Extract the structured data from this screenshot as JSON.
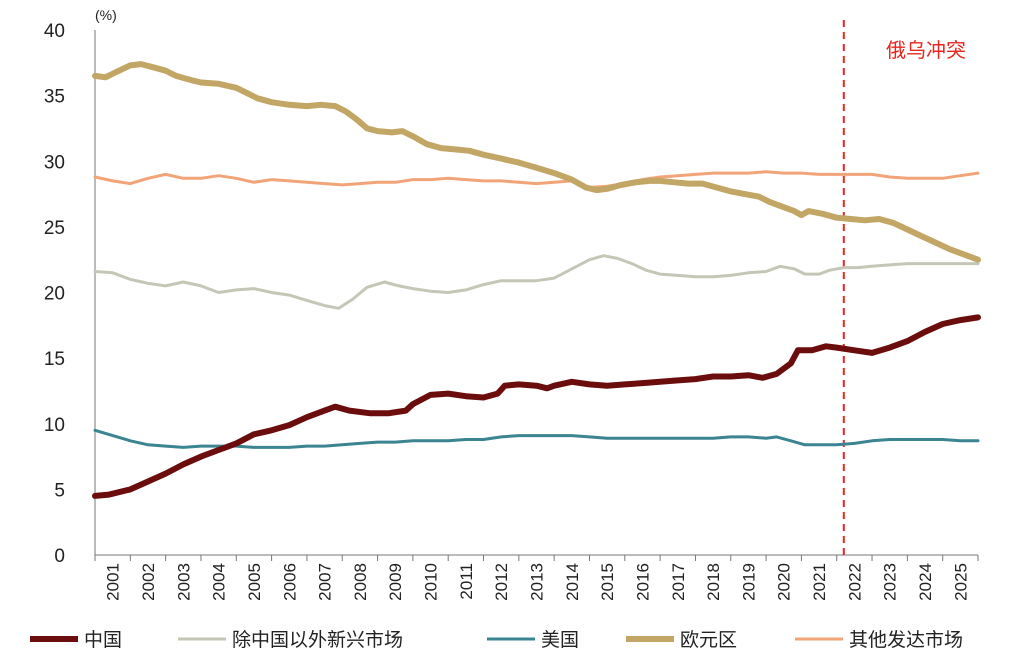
{
  "chart_data": {
    "type": "line",
    "unit_label": "(%)",
    "y_ticks": [
      "0",
      "5",
      "10",
      "15",
      "20",
      "25",
      "30",
      "35",
      "40"
    ],
    "ylim": [
      0,
      40
    ],
    "xlim": [
      2001.0,
      2026.0
    ],
    "x_ticks": [
      "2001",
      "2002",
      "2003",
      "2004",
      "2005",
      "2006",
      "2007",
      "2008",
      "2009",
      "2010",
      "2011",
      "2012",
      "2013",
      "2014",
      "2015",
      "2016",
      "2017",
      "2018",
      "2019",
      "2020",
      "2021",
      "2022",
      "2023",
      "2024",
      "2025"
    ],
    "annotation": {
      "label": "俄乌冲突",
      "x": 2022.2,
      "color": "#e8251f"
    },
    "series": [
      {
        "name": "中国",
        "color": "#6b0d0d",
        "width": 6,
        "points": [
          [
            2001.0,
            4.5
          ],
          [
            2001.4,
            4.6
          ],
          [
            2002.0,
            5.0
          ],
          [
            2002.5,
            5.6
          ],
          [
            2003.0,
            6.2
          ],
          [
            2003.5,
            6.9
          ],
          [
            2004.0,
            7.5
          ],
          [
            2004.5,
            8.0
          ],
          [
            2005.0,
            8.5
          ],
          [
            2005.5,
            9.2
          ],
          [
            2006.0,
            9.5
          ],
          [
            2006.5,
            9.9
          ],
          [
            2007.0,
            10.5
          ],
          [
            2007.5,
            11.0
          ],
          [
            2007.8,
            11.3
          ],
          [
            2008.2,
            11.0
          ],
          [
            2008.8,
            10.8
          ],
          [
            2009.3,
            10.8
          ],
          [
            2009.8,
            11.0
          ],
          [
            2010.0,
            11.5
          ],
          [
            2010.5,
            12.2
          ],
          [
            2011.0,
            12.3
          ],
          [
            2011.5,
            12.1
          ],
          [
            2012.0,
            12.0
          ],
          [
            2012.4,
            12.3
          ],
          [
            2012.6,
            12.9
          ],
          [
            2013.0,
            13.0
          ],
          [
            2013.5,
            12.9
          ],
          [
            2013.8,
            12.7
          ],
          [
            2014.0,
            12.9
          ],
          [
            2014.5,
            13.2
          ],
          [
            2015.0,
            13.0
          ],
          [
            2015.5,
            12.9
          ],
          [
            2016.0,
            13.0
          ],
          [
            2016.5,
            13.1
          ],
          [
            2017.0,
            13.2
          ],
          [
            2017.5,
            13.3
          ],
          [
            2018.0,
            13.4
          ],
          [
            2018.5,
            13.6
          ],
          [
            2019.0,
            13.6
          ],
          [
            2019.5,
            13.7
          ],
          [
            2019.9,
            13.5
          ],
          [
            2020.3,
            13.8
          ],
          [
            2020.7,
            14.6
          ],
          [
            2020.9,
            15.6
          ],
          [
            2021.3,
            15.6
          ],
          [
            2021.7,
            15.9
          ],
          [
            2022.0,
            15.8
          ],
          [
            2022.5,
            15.6
          ],
          [
            2023.0,
            15.4
          ],
          [
            2023.5,
            15.8
          ],
          [
            2024.0,
            16.3
          ],
          [
            2024.5,
            17.0
          ],
          [
            2025.0,
            17.6
          ],
          [
            2025.5,
            17.9
          ],
          [
            2026.0,
            18.1
          ]
        ]
      },
      {
        "name": "除中国以外新兴市场",
        "color": "#c5c7b6",
        "width": 3,
        "points": [
          [
            2001.0,
            21.6
          ],
          [
            2001.5,
            21.5
          ],
          [
            2002.0,
            21.0
          ],
          [
            2002.5,
            20.7
          ],
          [
            2003.0,
            20.5
          ],
          [
            2003.5,
            20.8
          ],
          [
            2004.0,
            20.5
          ],
          [
            2004.5,
            20.0
          ],
          [
            2005.0,
            20.2
          ],
          [
            2005.5,
            20.3
          ],
          [
            2006.0,
            20.0
          ],
          [
            2006.5,
            19.8
          ],
          [
            2007.0,
            19.4
          ],
          [
            2007.5,
            19.0
          ],
          [
            2007.9,
            18.8
          ],
          [
            2008.3,
            19.5
          ],
          [
            2008.7,
            20.4
          ],
          [
            2009.2,
            20.8
          ],
          [
            2009.6,
            20.5
          ],
          [
            2010.0,
            20.3
          ],
          [
            2010.5,
            20.1
          ],
          [
            2011.0,
            20.0
          ],
          [
            2011.5,
            20.2
          ],
          [
            2012.0,
            20.6
          ],
          [
            2012.5,
            20.9
          ],
          [
            2013.0,
            20.9
          ],
          [
            2013.5,
            20.9
          ],
          [
            2014.0,
            21.1
          ],
          [
            2014.5,
            21.8
          ],
          [
            2015.0,
            22.5
          ],
          [
            2015.4,
            22.8
          ],
          [
            2015.8,
            22.6
          ],
          [
            2016.2,
            22.2
          ],
          [
            2016.6,
            21.7
          ],
          [
            2017.0,
            21.4
          ],
          [
            2017.5,
            21.3
          ],
          [
            2018.0,
            21.2
          ],
          [
            2018.5,
            21.2
          ],
          [
            2019.0,
            21.3
          ],
          [
            2019.5,
            21.5
          ],
          [
            2020.0,
            21.6
          ],
          [
            2020.4,
            22.0
          ],
          [
            2020.8,
            21.8
          ],
          [
            2021.1,
            21.4
          ],
          [
            2021.5,
            21.4
          ],
          [
            2021.8,
            21.7
          ],
          [
            2022.2,
            21.9
          ],
          [
            2022.6,
            21.9
          ],
          [
            2023.0,
            22.0
          ],
          [
            2023.5,
            22.1
          ],
          [
            2024.0,
            22.2
          ],
          [
            2024.5,
            22.2
          ],
          [
            2025.0,
            22.2
          ],
          [
            2025.5,
            22.2
          ],
          [
            2026.0,
            22.2
          ]
        ]
      },
      {
        "name": "美国",
        "color": "#3b8491",
        "width": 3,
        "points": [
          [
            2001.0,
            9.5
          ],
          [
            2001.5,
            9.1
          ],
          [
            2002.0,
            8.7
          ],
          [
            2002.5,
            8.4
          ],
          [
            2003.0,
            8.3
          ],
          [
            2003.5,
            8.2
          ],
          [
            2004.0,
            8.3
          ],
          [
            2004.5,
            8.3
          ],
          [
            2005.0,
            8.3
          ],
          [
            2005.5,
            8.2
          ],
          [
            2006.0,
            8.2
          ],
          [
            2006.5,
            8.2
          ],
          [
            2007.0,
            8.3
          ],
          [
            2007.5,
            8.3
          ],
          [
            2008.0,
            8.4
          ],
          [
            2008.5,
            8.5
          ],
          [
            2009.0,
            8.6
          ],
          [
            2009.5,
            8.6
          ],
          [
            2010.0,
            8.7
          ],
          [
            2010.5,
            8.7
          ],
          [
            2011.0,
            8.7
          ],
          [
            2011.5,
            8.8
          ],
          [
            2012.0,
            8.8
          ],
          [
            2012.5,
            9.0
          ],
          [
            2013.0,
            9.1
          ],
          [
            2013.5,
            9.1
          ],
          [
            2014.0,
            9.1
          ],
          [
            2014.5,
            9.1
          ],
          [
            2015.0,
            9.0
          ],
          [
            2015.5,
            8.9
          ],
          [
            2016.0,
            8.9
          ],
          [
            2016.5,
            8.9
          ],
          [
            2017.0,
            8.9
          ],
          [
            2017.5,
            8.9
          ],
          [
            2018.0,
            8.9
          ],
          [
            2018.5,
            8.9
          ],
          [
            2019.0,
            9.0
          ],
          [
            2019.5,
            9.0
          ],
          [
            2020.0,
            8.9
          ],
          [
            2020.3,
            9.0
          ],
          [
            2020.7,
            8.7
          ],
          [
            2021.1,
            8.4
          ],
          [
            2021.5,
            8.4
          ],
          [
            2022.0,
            8.4
          ],
          [
            2022.5,
            8.5
          ],
          [
            2023.0,
            8.7
          ],
          [
            2023.5,
            8.8
          ],
          [
            2024.0,
            8.8
          ],
          [
            2024.5,
            8.8
          ],
          [
            2025.0,
            8.8
          ],
          [
            2025.5,
            8.7
          ],
          [
            2026.0,
            8.7
          ]
        ]
      },
      {
        "name": "欧元区",
        "color": "#c2a665",
        "width": 6,
        "points": [
          [
            2001.0,
            36.5
          ],
          [
            2001.3,
            36.4
          ],
          [
            2001.6,
            36.8
          ],
          [
            2002.0,
            37.3
          ],
          [
            2002.3,
            37.4
          ],
          [
            2002.6,
            37.2
          ],
          [
            2003.0,
            36.9
          ],
          [
            2003.3,
            36.5
          ],
          [
            2003.7,
            36.2
          ],
          [
            2004.0,
            36.0
          ],
          [
            2004.5,
            35.9
          ],
          [
            2005.0,
            35.6
          ],
          [
            2005.3,
            35.2
          ],
          [
            2005.6,
            34.8
          ],
          [
            2006.0,
            34.5
          ],
          [
            2006.5,
            34.3
          ],
          [
            2007.0,
            34.2
          ],
          [
            2007.4,
            34.3
          ],
          [
            2007.8,
            34.2
          ],
          [
            2008.1,
            33.8
          ],
          [
            2008.4,
            33.2
          ],
          [
            2008.7,
            32.5
          ],
          [
            2009.0,
            32.3
          ],
          [
            2009.4,
            32.2
          ],
          [
            2009.7,
            32.3
          ],
          [
            2010.0,
            31.9
          ],
          [
            2010.4,
            31.3
          ],
          [
            2010.8,
            31.0
          ],
          [
            2011.2,
            30.9
          ],
          [
            2011.6,
            30.8
          ],
          [
            2012.0,
            30.5
          ],
          [
            2012.5,
            30.2
          ],
          [
            2013.0,
            29.9
          ],
          [
            2013.5,
            29.5
          ],
          [
            2014.0,
            29.1
          ],
          [
            2014.5,
            28.6
          ],
          [
            2014.9,
            28.0
          ],
          [
            2015.2,
            27.8
          ],
          [
            2015.5,
            27.9
          ],
          [
            2015.9,
            28.2
          ],
          [
            2016.3,
            28.4
          ],
          [
            2016.7,
            28.5
          ],
          [
            2017.0,
            28.5
          ],
          [
            2017.4,
            28.4
          ],
          [
            2017.8,
            28.3
          ],
          [
            2018.2,
            28.3
          ],
          [
            2018.6,
            28.0
          ],
          [
            2019.0,
            27.7
          ],
          [
            2019.4,
            27.5
          ],
          [
            2019.8,
            27.3
          ],
          [
            2020.1,
            26.9
          ],
          [
            2020.5,
            26.5
          ],
          [
            2020.8,
            26.2
          ],
          [
            2021.0,
            25.9
          ],
          [
            2021.2,
            26.2
          ],
          [
            2021.6,
            26.0
          ],
          [
            2022.0,
            25.7
          ],
          [
            2022.4,
            25.6
          ],
          [
            2022.8,
            25.5
          ],
          [
            2023.2,
            25.6
          ],
          [
            2023.6,
            25.3
          ],
          [
            2024.0,
            24.8
          ],
          [
            2024.4,
            24.3
          ],
          [
            2024.8,
            23.8
          ],
          [
            2025.2,
            23.3
          ],
          [
            2025.6,
            22.9
          ],
          [
            2026.0,
            22.5
          ]
        ]
      },
      {
        "name": "其他发达市场",
        "color": "#f0a477",
        "width": 3,
        "points": [
          [
            2001.0,
            28.8
          ],
          [
            2001.5,
            28.5
          ],
          [
            2002.0,
            28.3
          ],
          [
            2002.5,
            28.7
          ],
          [
            2003.0,
            29.0
          ],
          [
            2003.5,
            28.7
          ],
          [
            2004.0,
            28.7
          ],
          [
            2004.5,
            28.9
          ],
          [
            2005.0,
            28.7
          ],
          [
            2005.5,
            28.4
          ],
          [
            2006.0,
            28.6
          ],
          [
            2006.5,
            28.5
          ],
          [
            2007.0,
            28.4
          ],
          [
            2007.5,
            28.3
          ],
          [
            2008.0,
            28.2
          ],
          [
            2008.5,
            28.3
          ],
          [
            2009.0,
            28.4
          ],
          [
            2009.5,
            28.4
          ],
          [
            2010.0,
            28.6
          ],
          [
            2010.5,
            28.6
          ],
          [
            2011.0,
            28.7
          ],
          [
            2011.5,
            28.6
          ],
          [
            2012.0,
            28.5
          ],
          [
            2012.5,
            28.5
          ],
          [
            2013.0,
            28.4
          ],
          [
            2013.5,
            28.3
          ],
          [
            2014.0,
            28.4
          ],
          [
            2014.5,
            28.5
          ],
          [
            2015.0,
            28.0
          ],
          [
            2015.5,
            28.1
          ],
          [
            2016.0,
            28.3
          ],
          [
            2016.5,
            28.6
          ],
          [
            2017.0,
            28.8
          ],
          [
            2017.5,
            28.9
          ],
          [
            2018.0,
            29.0
          ],
          [
            2018.5,
            29.1
          ],
          [
            2019.0,
            29.1
          ],
          [
            2019.5,
            29.1
          ],
          [
            2020.0,
            29.2
          ],
          [
            2020.5,
            29.1
          ],
          [
            2021.0,
            29.1
          ],
          [
            2021.5,
            29.0
          ],
          [
            2022.0,
            29.0
          ],
          [
            2022.5,
            29.0
          ],
          [
            2023.0,
            29.0
          ],
          [
            2023.5,
            28.8
          ],
          [
            2024.0,
            28.7
          ],
          [
            2024.5,
            28.7
          ],
          [
            2025.0,
            28.7
          ],
          [
            2025.5,
            28.9
          ],
          [
            2026.0,
            29.1
          ]
        ]
      }
    ]
  }
}
